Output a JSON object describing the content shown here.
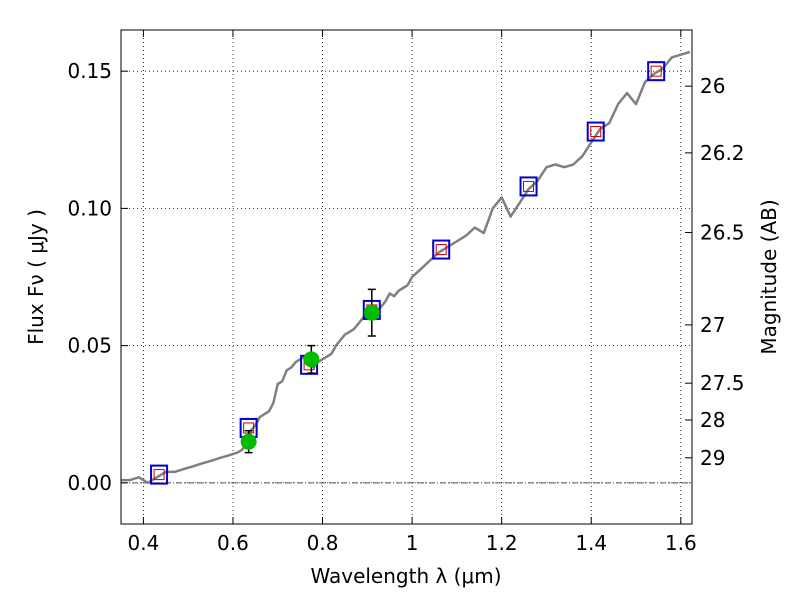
{
  "chart_data": {
    "type": "line",
    "title": "",
    "xlabel": "Wavelength  λ (μm)",
    "ylabel": "Flux  Fν  ( μJy )",
    "ylabel_right": "Magnitude (AB)",
    "xlim": [
      0.35,
      1.625
    ],
    "ylim": [
      -0.015,
      0.165
    ],
    "grid": true,
    "x_ticks": [
      {
        "value": 0.4,
        "label": "0.4"
      },
      {
        "value": 0.6,
        "label": "0.6"
      },
      {
        "value": 0.8,
        "label": "0.8"
      },
      {
        "value": 1.0,
        "label": "1"
      },
      {
        "value": 1.2,
        "label": "1.2"
      },
      {
        "value": 1.4,
        "label": "1.4"
      },
      {
        "value": 1.6,
        "label": "1.6"
      }
    ],
    "y_ticks": [
      {
        "value": 0.0,
        "label": "0.00"
      },
      {
        "value": 0.05,
        "label": "0.05"
      },
      {
        "value": 0.1,
        "label": "0.10"
      },
      {
        "value": 0.15,
        "label": "0.15"
      }
    ],
    "right_ticks": [
      {
        "mag": 26,
        "label": "26"
      },
      {
        "mag": 26.2,
        "label": "26.2"
      },
      {
        "mag": 26.5,
        "label": "26.5"
      },
      {
        "mag": 27,
        "label": "27"
      },
      {
        "mag": 27.5,
        "label": "27.5"
      },
      {
        "mag": 28,
        "label": "28"
      },
      {
        "mag": 29,
        "label": "29"
      }
    ],
    "colors": {
      "spectrum": "#808080",
      "model_box": "#0000cc",
      "model_inner": "#cc0000",
      "observed": "#00bb00",
      "errorbar": "#000000",
      "zero_line": "#555555"
    },
    "series": [
      {
        "name": "spectrum",
        "style": "line",
        "x": [
          0.35,
          0.37,
          0.39,
          0.41,
          0.43,
          0.45,
          0.47,
          0.49,
          0.51,
          0.53,
          0.55,
          0.57,
          0.59,
          0.61,
          0.62,
          0.63,
          0.64,
          0.65,
          0.66,
          0.67,
          0.68,
          0.69,
          0.7,
          0.71,
          0.72,
          0.73,
          0.74,
          0.75,
          0.76,
          0.77,
          0.78,
          0.79,
          0.8,
          0.81,
          0.82,
          0.83,
          0.84,
          0.85,
          0.86,
          0.87,
          0.88,
          0.89,
          0.9,
          0.91,
          0.92,
          0.93,
          0.94,
          0.95,
          0.96,
          0.97,
          0.98,
          0.99,
          1.0,
          1.02,
          1.04,
          1.06,
          1.08,
          1.1,
          1.12,
          1.14,
          1.16,
          1.18,
          1.2,
          1.22,
          1.24,
          1.26,
          1.28,
          1.3,
          1.32,
          1.34,
          1.36,
          1.38,
          1.4,
          1.42,
          1.44,
          1.46,
          1.48,
          1.5,
          1.52,
          1.54,
          1.56,
          1.58,
          1.6,
          1.62
        ],
        "y": [
          0.001,
          0.001,
          0.002,
          0.0,
          0.002,
          0.004,
          0.004,
          0.005,
          0.006,
          0.007,
          0.008,
          0.009,
          0.01,
          0.011,
          0.012,
          0.014,
          0.019,
          0.021,
          0.024,
          0.025,
          0.026,
          0.029,
          0.036,
          0.037,
          0.041,
          0.042,
          0.044,
          0.045,
          0.046,
          0.044,
          0.042,
          0.044,
          0.045,
          0.046,
          0.047,
          0.05,
          0.052,
          0.054,
          0.055,
          0.056,
          0.058,
          0.06,
          0.061,
          0.062,
          0.062,
          0.064,
          0.066,
          0.069,
          0.068,
          0.07,
          0.071,
          0.072,
          0.075,
          0.078,
          0.081,
          0.084,
          0.086,
          0.088,
          0.09,
          0.093,
          0.091,
          0.1,
          0.104,
          0.097,
          0.102,
          0.107,
          0.11,
          0.115,
          0.116,
          0.115,
          0.116,
          0.119,
          0.124,
          0.129,
          0.131,
          0.138,
          0.142,
          0.138,
          0.146,
          0.149,
          0.151,
          0.155,
          0.156,
          0.157
        ]
      },
      {
        "name": "model photometry",
        "style": "square",
        "x": [
          0.435,
          0.635,
          0.77,
          0.91,
          1.065,
          1.26,
          1.41,
          1.545
        ],
        "y": [
          0.003,
          0.02,
          0.043,
          0.063,
          0.085,
          0.108,
          0.128,
          0.15
        ]
      },
      {
        "name": "observed photometry",
        "style": "circle",
        "x": [
          0.635,
          0.775,
          0.91
        ],
        "y": [
          0.015,
          0.045,
          0.062
        ],
        "yerr": [
          0.004,
          0.005,
          0.0085
        ]
      }
    ]
  }
}
